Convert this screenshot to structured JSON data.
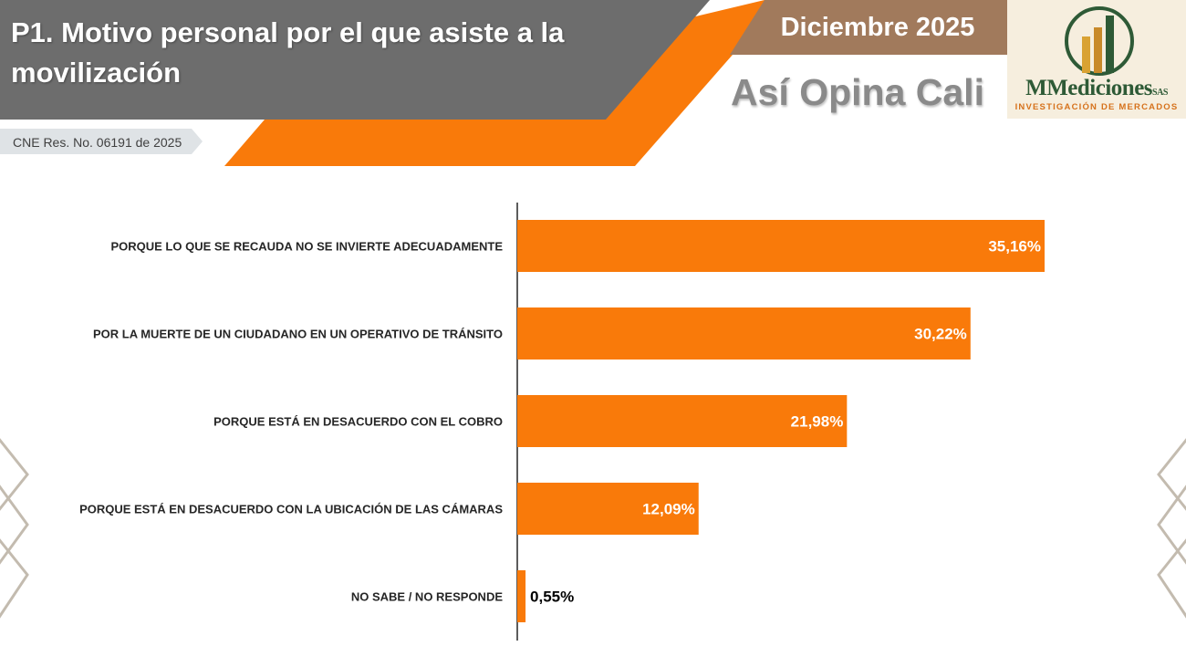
{
  "header": {
    "title": "P1. Motivo personal por el que asiste a la movilización",
    "date": "Diciembre 2025",
    "subtitle": "Así Opina Cali",
    "cne": "CNE Res. No. 06191 de 2025"
  },
  "logo": {
    "brand": "MMediciones",
    "brand_suffix": "SAS",
    "tagline": "INVESTIGACIÓN DE MERCADOS"
  },
  "colors": {
    "orange": "#f97a0a",
    "gray": "#6d6d6d",
    "brown": "#a17a5c",
    "green": "#2e5a36",
    "gold": "#d9a233"
  },
  "chart_data": {
    "type": "bar",
    "orientation": "horizontal",
    "title": "P1. Motivo personal por el que asiste a la movilización",
    "categories": [
      "PORQUE LO QUE SE RECAUDA NO SE INVIERTE ADECUADAMENTE",
      "POR LA MUERTE DE UN CIUDADANO EN UN OPERATIVO DE TRÁNSITO",
      "PORQUE ESTÁ EN DESACUERDO CON EL COBRO",
      "PORQUE ESTÁ EN DESACUERDO CON LA UBICACIÓN DE LAS CÁMARAS",
      "NO SABE / NO RESPONDE"
    ],
    "values": [
      35.16,
      30.22,
      21.98,
      12.09,
      0.55
    ],
    "value_labels": [
      "35,16%",
      "30,22%",
      "21,98%",
      "12,09%",
      "0,55%"
    ],
    "xlim": [
      0,
      40
    ],
    "unit": "%",
    "grid": false
  }
}
